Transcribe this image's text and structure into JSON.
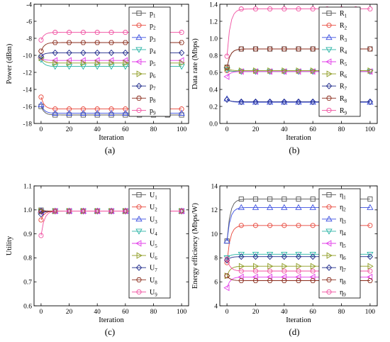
{
  "figure": {
    "panel_labels": [
      "(a)",
      "(b)",
      "(c)",
      "(d)"
    ]
  },
  "chart_data": [
    {
      "panel": "(a)",
      "type": "line",
      "xlabel": "Iteration",
      "ylabel": "Power (dBm)",
      "xlim": [
        -5,
        105
      ],
      "ylim": [
        -18,
        -4
      ],
      "xticks": [
        0,
        20,
        40,
        60,
        80,
        100
      ],
      "yticks": [
        -18,
        -16,
        -14,
        -12,
        -10,
        -8,
        -6,
        -4
      ],
      "legend": "top-right",
      "series": [
        {
          "name": "p1",
          "base": "p",
          "sub": "1",
          "color": "#555555",
          "marker": "square",
          "x0": -16.0,
          "y": -17.0
        },
        {
          "name": "p2",
          "base": "p",
          "sub": "2",
          "color": "#e8463a",
          "marker": "circle",
          "x0": -14.9,
          "y": -16.3
        },
        {
          "name": "p3",
          "base": "p",
          "sub": "3",
          "color": "#3b4fe0",
          "marker": "triangle",
          "x0": -15.8,
          "y": -16.8
        },
        {
          "name": "p4",
          "base": "p",
          "sub": "4",
          "color": "#27b3a4",
          "marker": "tridown",
          "x0": -10.5,
          "y": -11.3
        },
        {
          "name": "p5",
          "base": "p",
          "sub": "5",
          "color": "#e23ee8",
          "marker": "triL",
          "x0": -10.3,
          "y": -10.6
        },
        {
          "name": "p6",
          "base": "p",
          "sub": "6",
          "color": "#8c9a1e",
          "marker": "triR",
          "x0": -10.3,
          "y": -10.9
        },
        {
          "name": "p7",
          "base": "p",
          "sub": "7",
          "color": "#1f2a8a",
          "marker": "diamond",
          "x0": -10.1,
          "y": -9.7
        },
        {
          "name": "p8",
          "base": "p",
          "sub": "8",
          "color": "#8b2e1e",
          "marker": "hexagon",
          "x0": -9.5,
          "y": -8.5
        },
        {
          "name": "p9",
          "base": "p",
          "sub": "9",
          "color": "#f04fa0",
          "marker": "circle",
          "x0": -8.2,
          "y": -7.3
        }
      ]
    },
    {
      "panel": "(b)",
      "type": "line",
      "xlabel": "Iteration",
      "ylabel": "Data rate (Mbps)",
      "xlim": [
        -5,
        105
      ],
      "ylim": [
        0.0,
        1.4
      ],
      "xticks": [
        0,
        20,
        40,
        60,
        80,
        100
      ],
      "yticks": [
        0.0,
        0.2,
        0.4,
        0.6,
        0.8,
        1.0,
        1.2,
        1.4
      ],
      "legend": "top-right",
      "series": [
        {
          "name": "R1",
          "base": "R",
          "sub": "1",
          "color": "#555555",
          "marker": "square",
          "x0": 0.66,
          "y": 0.875
        },
        {
          "name": "R2",
          "base": "R",
          "sub": "2",
          "color": "#e8463a",
          "marker": "circle",
          "x0": 0.62,
          "y": 0.61
        },
        {
          "name": "R3",
          "base": "R",
          "sub": "3",
          "color": "#3b4fe0",
          "marker": "triangle",
          "x0": 0.29,
          "y": 0.25
        },
        {
          "name": "R4",
          "base": "R",
          "sub": "4",
          "color": "#27b3a4",
          "marker": "tridown",
          "x0": 0.63,
          "y": 0.61
        },
        {
          "name": "R5",
          "base": "R",
          "sub": "5",
          "color": "#e23ee8",
          "marker": "triL",
          "x0": 0.55,
          "y": 0.61
        },
        {
          "name": "R6",
          "base": "R",
          "sub": "6",
          "color": "#8c9a1e",
          "marker": "triR",
          "x0": 0.65,
          "y": 0.62
        },
        {
          "name": "R7",
          "base": "R",
          "sub": "7",
          "color": "#1f2a8a",
          "marker": "diamond",
          "x0": 0.28,
          "y": 0.255
        },
        {
          "name": "R8",
          "base": "R",
          "sub": "8",
          "color": "#8b2e1e",
          "marker": "hexagon",
          "x0": 0.66,
          "y": 0.875
        },
        {
          "name": "R9",
          "base": "R",
          "sub": "9",
          "color": "#f04fa0",
          "marker": "circle",
          "x0": 0.79,
          "y": 1.345
        }
      ]
    },
    {
      "panel": "(c)",
      "type": "line",
      "xlabel": "Iteration",
      "ylabel": "Utility",
      "xlim": [
        -5,
        105
      ],
      "ylim": [
        0.6,
        1.1
      ],
      "xticks": [
        0,
        20,
        40,
        60,
        80,
        100
      ],
      "yticks": [
        0.6,
        0.7,
        0.8,
        0.9,
        1.0,
        1.1
      ],
      "legend": "top-right",
      "series": [
        {
          "name": "U1",
          "base": "U",
          "sub": "1",
          "color": "#555555",
          "marker": "square",
          "x0": 0.999,
          "y": 0.995
        },
        {
          "name": "U2",
          "base": "U",
          "sub": "2",
          "color": "#e8463a",
          "marker": "circle",
          "x0": 0.958,
          "y": 0.995
        },
        {
          "name": "U3",
          "base": "U",
          "sub": "3",
          "color": "#3b4fe0",
          "marker": "triangle",
          "x0": 0.996,
          "y": 0.995
        },
        {
          "name": "U4",
          "base": "U",
          "sub": "4",
          "color": "#27b3a4",
          "marker": "tridown",
          "x0": 0.993,
          "y": 0.995
        },
        {
          "name": "U5",
          "base": "U",
          "sub": "5",
          "color": "#e23ee8",
          "marker": "triL",
          "x0": 0.99,
          "y": 0.995
        },
        {
          "name": "U6",
          "base": "U",
          "sub": "6",
          "color": "#8c9a1e",
          "marker": "triR",
          "x0": 0.994,
          "y": 0.995
        },
        {
          "name": "U7",
          "base": "U",
          "sub": "7",
          "color": "#1f2a8a",
          "marker": "diamond",
          "x0": 0.982,
          "y": 0.995
        },
        {
          "name": "U8",
          "base": "U",
          "sub": "8",
          "color": "#8b2e1e",
          "marker": "hexagon",
          "x0": 0.995,
          "y": 0.995
        },
        {
          "name": "U9",
          "base": "U",
          "sub": "9",
          "color": "#f04fa0",
          "marker": "circle",
          "x0": 0.893,
          "y": 0.995
        }
      ]
    },
    {
      "panel": "(d)",
      "type": "line",
      "xlabel": "Iteration",
      "ylabel": "Energy efficiency (Mbps/W)",
      "xlim": [
        -5,
        105
      ],
      "ylim": [
        4,
        14
      ],
      "xticks": [
        0,
        20,
        40,
        60,
        80,
        100
      ],
      "yticks": [
        4,
        6,
        8,
        10,
        12,
        14
      ],
      "legend": "top-right",
      "series": [
        {
          "name": "η1",
          "base": "η",
          "sub": "1",
          "color": "#555555",
          "marker": "square",
          "x0": 9.4,
          "y": 12.9
        },
        {
          "name": "η2",
          "base": "η",
          "sub": "2",
          "color": "#e8463a",
          "marker": "circle",
          "x0": 7.6,
          "y": 10.7
        },
        {
          "name": "η3",
          "base": "η",
          "sub": "3",
          "color": "#3b4fe0",
          "marker": "triangle",
          "x0": 9.4,
          "y": 12.2
        },
        {
          "name": "η4",
          "base": "η",
          "sub": "4",
          "color": "#27b3a4",
          "marker": "tridown",
          "x0": 8.0,
          "y": 8.3
        },
        {
          "name": "η5",
          "base": "η",
          "sub": "5",
          "color": "#e23ee8",
          "marker": "triL",
          "x0": 5.5,
          "y": 6.4
        },
        {
          "name": "η6",
          "base": "η",
          "sub": "6",
          "color": "#8c9a1e",
          "marker": "triR",
          "x0": 6.5,
          "y": 7.3
        },
        {
          "name": "η7",
          "base": "η",
          "sub": "7",
          "color": "#1f2a8a",
          "marker": "diamond",
          "x0": 7.8,
          "y": 8.1
        },
        {
          "name": "η8",
          "base": "η",
          "sub": "8",
          "color": "#8b2e1e",
          "marker": "hexagon",
          "x0": 6.5,
          "y": 6.1
        },
        {
          "name": "η9",
          "base": "η",
          "sub": "9",
          "color": "#f04fa0",
          "marker": "circle",
          "x0": 7.9,
          "y": 6.9
        }
      ]
    }
  ]
}
